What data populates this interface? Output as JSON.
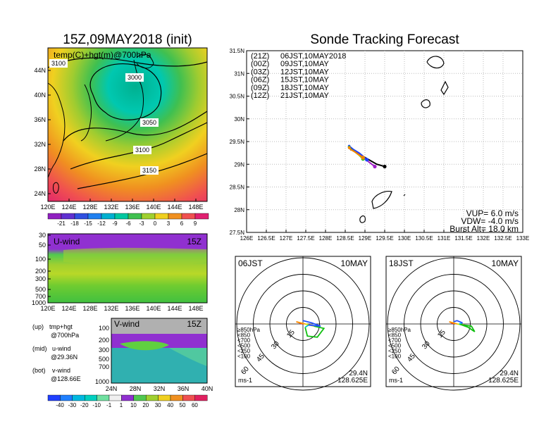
{
  "left": {
    "title": "15Z,09MAY2018 (init)",
    "map_label": "temp(C)+hgt(m)@700hPa",
    "lat_ticks": [
      "44N",
      "40N",
      "36N",
      "32N",
      "28N",
      "24N"
    ],
    "lon_ticks": [
      "120E",
      "124E",
      "128E",
      "132E",
      "136E",
      "140E",
      "144E",
      "148E"
    ],
    "contours": [
      "3100",
      "3000",
      "3050",
      "3100",
      "3150"
    ],
    "temp_colorbar": [
      "-21",
      "-18",
      "-15",
      "-12",
      "-9",
      "-6",
      "-3",
      "0",
      "3",
      "6",
      "9"
    ],
    "u_panel": {
      "label": "U-wind",
      "time": "15Z",
      "p_ticks": [
        "30",
        "50",
        "100",
        "200",
        "300",
        "500",
        "700",
        "1000"
      ]
    },
    "v_panel": {
      "label": "V-wind",
      "time": "15Z",
      "p_ticks": [
        "100",
        "200",
        "300",
        "500",
        "700",
        "1000"
      ],
      "lat_ticks": [
        "24N",
        "28N",
        "32N",
        "36N",
        "40N"
      ]
    },
    "wind_colorbar": [
      "-40",
      "-30",
      "-20",
      "-10",
      "-1",
      "1",
      "10",
      "20",
      "30",
      "40",
      "50",
      "60"
    ],
    "legend": [
      {
        "k": "(up)",
        "v": "tmp+hgt",
        "s": "@700hPa"
      },
      {
        "k": "(mid)",
        "v": "u-wind",
        "s": "@29.36N"
      },
      {
        "k": "(bot)",
        "v": "v-wind",
        "s": "@128.66E"
      }
    ]
  },
  "right": {
    "title": "Sonde Tracking Forecast",
    "lat_ticks": [
      "31.5N",
      "31N",
      "30.5N",
      "30N",
      "29.5N",
      "29N",
      "28.5N",
      "28N",
      "27.5N"
    ],
    "lon_ticks": [
      "126E",
      "126.5E",
      "127E",
      "127.5E",
      "128E",
      "128.5E",
      "129E",
      "129.5E",
      "130E",
      "130.5E",
      "131E",
      "131.5E",
      "132E",
      "132.5E",
      "133E"
    ],
    "legend": [
      {
        "utc": "(21Z)",
        "jst": "06JST,10MAY2018",
        "color": "#000000"
      },
      {
        "utc": "(00Z)",
        "jst": "09JST,10MAY",
        "color": "#a020c8"
      },
      {
        "utc": "(03Z)",
        "jst": "12JST,10MAY",
        "color": "#2040ff"
      },
      {
        "utc": "(06Z)",
        "jst": "15JST,10MAY",
        "color": "#10b010"
      },
      {
        "utc": "(09Z)",
        "jst": "18JST,10MAY",
        "color": "#f0c000"
      },
      {
        "utc": "(12Z)",
        "jst": "21JST,10MAY",
        "color": "#f08000"
      }
    ],
    "params": [
      "VUP= 6.0 m/s",
      "VDW= -4.0 m/s",
      "Burst Alt= 18.0 km"
    ]
  },
  "hodographs": [
    {
      "time": "06JST",
      "date": "10MAY",
      "rings": [
        "15",
        "30",
        "45",
        "60"
      ],
      "unit": "ms-1",
      "lat": "29.4N",
      "lon": "128.625E",
      "levels": [
        {
          "t": "≥850hPa",
          "c": "#ff2020"
        },
        {
          "t": "<850",
          "c": "#ff9900"
        },
        {
          "t": "<700",
          "c": "#dddd00"
        },
        {
          "t": "<500",
          "c": "#10c010"
        },
        {
          "t": "<250",
          "c": "#00c8c8"
        },
        {
          "t": "<100",
          "c": "#2050ff"
        }
      ]
    },
    {
      "time": "18JST",
      "date": "10MAY",
      "rings": [
        "15",
        "30",
        "45",
        "60"
      ],
      "unit": "ms-1",
      "lat": "29.4N",
      "lon": "128.625E",
      "levels": [
        {
          "t": "≥850hPa",
          "c": "#ff2020"
        },
        {
          "t": "<850",
          "c": "#ff9900"
        },
        {
          "t": "<700",
          "c": "#dddd00"
        },
        {
          "t": "<500",
          "c": "#10c010"
        },
        {
          "t": "<250",
          "c": "#00c8c8"
        },
        {
          "t": "<100",
          "c": "#2050ff"
        }
      ]
    }
  ],
  "chart_data": [
    {
      "type": "heatmap",
      "title": "15Z,09MAY2018 (init)",
      "label": "temp(C)+hgt(m)@700hPa",
      "xlim": [
        "120E",
        "150E"
      ],
      "ylim": [
        "22N",
        "47N"
      ],
      "colorbar": [
        -21,
        -18,
        -15,
        -12,
        -9,
        -6,
        -3,
        0,
        3,
        6,
        9
      ],
      "contour_labels": [
        3100,
        3000,
        3050,
        3100,
        3150
      ]
    },
    {
      "type": "heatmap",
      "label": "U-wind",
      "xlim": [
        "120E",
        "150E"
      ],
      "y_pressure_hPa": [
        30,
        50,
        100,
        200,
        300,
        500,
        700,
        1000
      ],
      "colorbar": [
        -40,
        -30,
        -20,
        -10,
        -1,
        1,
        10,
        20,
        30,
        40,
        50,
        60
      ]
    },
    {
      "type": "heatmap",
      "label": "V-wind",
      "xlim": [
        "24N",
        "40N"
      ],
      "y_pressure_hPa": [
        100,
        200,
        300,
        500,
        700,
        1000
      ],
      "colorbar": [
        -40,
        -30,
        -20,
        -10,
        -1,
        1,
        10,
        20,
        30,
        40,
        50,
        60
      ]
    },
    {
      "type": "line",
      "title": "Sonde Tracking Forecast",
      "xlim": [
        126,
        133
      ],
      "ylim": [
        27.5,
        31.5
      ],
      "series": [
        {
          "name": "06JST,10MAY2018",
          "color": "#000000",
          "x": [
            129.5,
            129.3,
            129.0,
            128.8,
            128.65
          ],
          "y": [
            28.95,
            29.0,
            29.15,
            29.25,
            29.33
          ]
        },
        {
          "name": "09JST,10MAY",
          "color": "#a020c8",
          "x": [
            129.25,
            129.1,
            128.95,
            128.8,
            128.6
          ],
          "y": [
            28.95,
            29.05,
            29.15,
            29.27,
            29.38
          ]
        },
        {
          "name": "12JST,10MAY",
          "color": "#2040ff",
          "x": [
            129.05,
            128.95,
            128.85,
            128.7,
            128.6
          ],
          "y": [
            29.1,
            29.18,
            29.25,
            29.33,
            29.4
          ]
        },
        {
          "name": "15JST,10MAY",
          "color": "#10b010",
          "x": [
            128.95,
            128.85,
            128.75,
            128.65,
            128.6
          ],
          "y": [
            29.12,
            29.2,
            29.27,
            29.33,
            29.38
          ]
        },
        {
          "name": "18JST,10MAY",
          "color": "#f0c000",
          "x": [
            128.95,
            128.85,
            128.75,
            128.65,
            128.6
          ],
          "y": [
            29.14,
            29.2,
            29.27,
            29.32,
            29.37
          ]
        },
        {
          "name": "21JST,10MAY",
          "color": "#f08000",
          "x": [
            128.95,
            128.85,
            128.75,
            128.65,
            128.6
          ],
          "y": [
            29.15,
            29.21,
            29.27,
            29.32,
            29.36
          ]
        }
      ]
    },
    {
      "type": "line",
      "title": "06JST 10MAY",
      "rings": [
        15,
        30,
        45,
        60
      ],
      "series": [
        {
          "name": "≥850hPa",
          "color": "#ff2020",
          "u": [
            0,
            -6
          ],
          "v": [
            0,
            2
          ]
        },
        {
          "name": "<850",
          "color": "#ff9900",
          "u": [
            -6,
            2
          ],
          "v": [
            2,
            0
          ]
        },
        {
          "name": "<700",
          "color": "#dddd00",
          "u": [
            2,
            10
          ],
          "v": [
            0,
            -2
          ]
        },
        {
          "name": "<500",
          "color": "#10c010",
          "u": [
            10,
            19,
            13,
            4,
            2
          ],
          "v": [
            -2,
            -4,
            -12,
            -11,
            -3
          ]
        },
        {
          "name": "<250",
          "color": "#00c8c8",
          "u": [
            2,
            5
          ],
          "v": [
            -3,
            -1
          ]
        },
        {
          "name": "<100",
          "color": "#2050ff",
          "u": [
            5,
            16,
            8,
            0
          ],
          "v": [
            -1,
            -2,
            1,
            3
          ]
        }
      ]
    },
    {
      "type": "line",
      "title": "18JST 10MAY",
      "rings": [
        15,
        30,
        45,
        60
      ],
      "series": [
        {
          "name": "≥850hPa",
          "color": "#ff2020",
          "u": [
            0,
            -4
          ],
          "v": [
            0,
            2
          ]
        },
        {
          "name": "<850",
          "color": "#ff9900",
          "u": [
            -4,
            3
          ],
          "v": [
            2,
            0
          ]
        },
        {
          "name": "<700",
          "color": "#dddd00",
          "u": [
            3,
            9
          ],
          "v": [
            0,
            -1
          ]
        },
        {
          "name": "<500",
          "color": "#10c010",
          "u": [
            9,
            16,
            19,
            13,
            5
          ],
          "v": [
            -1,
            -2,
            -7,
            -3,
            0
          ]
        },
        {
          "name": "<250",
          "color": "#00c8c8",
          "u": [
            5,
            8
          ],
          "v": [
            0,
            1
          ]
        },
        {
          "name": "<100",
          "color": "#2050ff",
          "u": [
            8,
            3,
            0
          ],
          "v": [
            1,
            3,
            2
          ]
        }
      ]
    }
  ]
}
